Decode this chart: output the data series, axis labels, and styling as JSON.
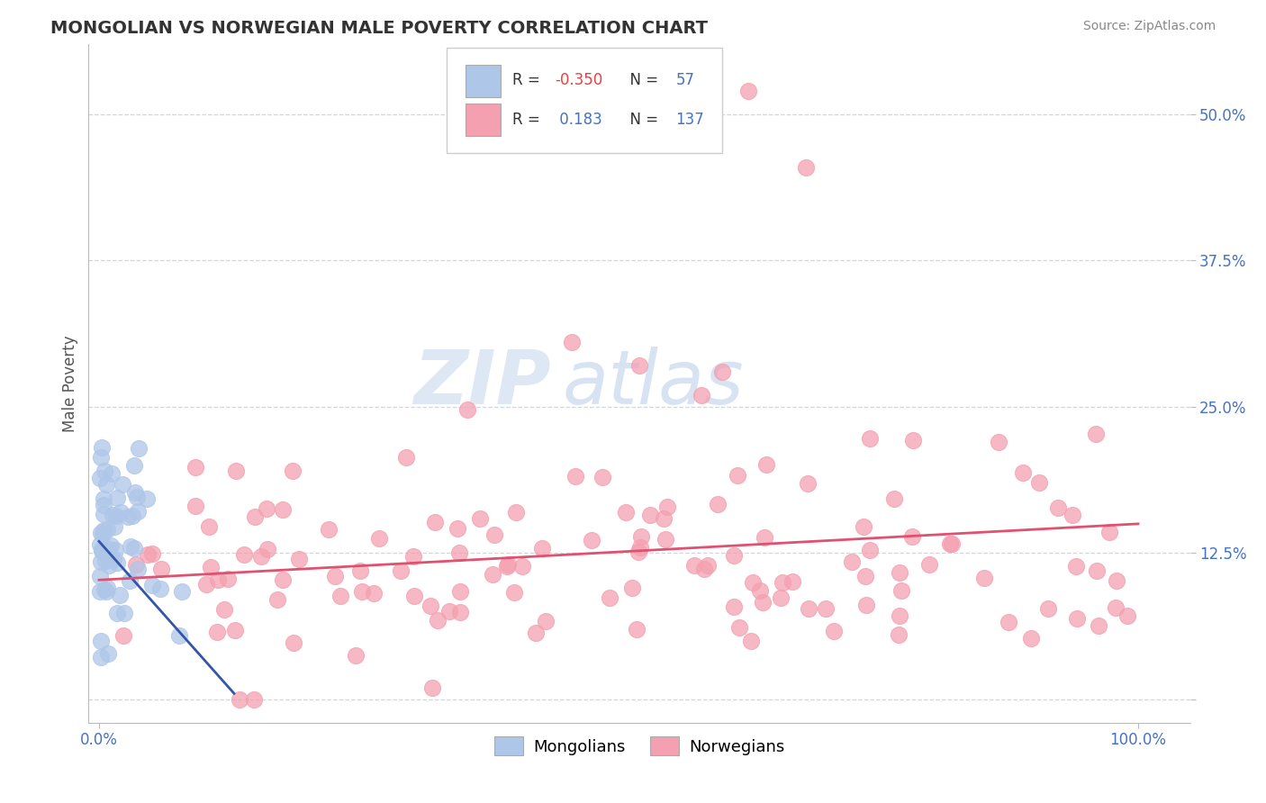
{
  "title": "MONGOLIAN VS NORWEGIAN MALE POVERTY CORRELATION CHART",
  "source": "Source: ZipAtlas.com",
  "ylabel": "Male Poverty",
  "xlim": [
    -0.01,
    1.05
  ],
  "ylim": [
    -0.02,
    0.56
  ],
  "x_ticks": [
    0.0,
    1.0
  ],
  "x_tick_labels": [
    "0.0%",
    "100.0%"
  ],
  "y_ticks": [
    0.0,
    0.125,
    0.25,
    0.375,
    0.5
  ],
  "y_tick_labels": [
    "",
    "12.5%",
    "25.0%",
    "37.5%",
    "50.0%"
  ],
  "grid_color": "#cccccc",
  "background_color": "#ffffff",
  "mongolian_color": "#aec6e8",
  "norwegian_color": "#f4a0b0",
  "mongolian_R": "-0.350",
  "mongolian_N": "57",
  "norwegian_R": "0.183",
  "norwegian_N": "137",
  "mongolian_line_color": "#3355aa",
  "norwegian_line_color": "#e05070",
  "legend_mongolian_label": "Mongolians",
  "legend_norwegian_label": "Norwegians",
  "watermark_zip": "ZIP",
  "watermark_atlas": "atlas",
  "seed": 12
}
